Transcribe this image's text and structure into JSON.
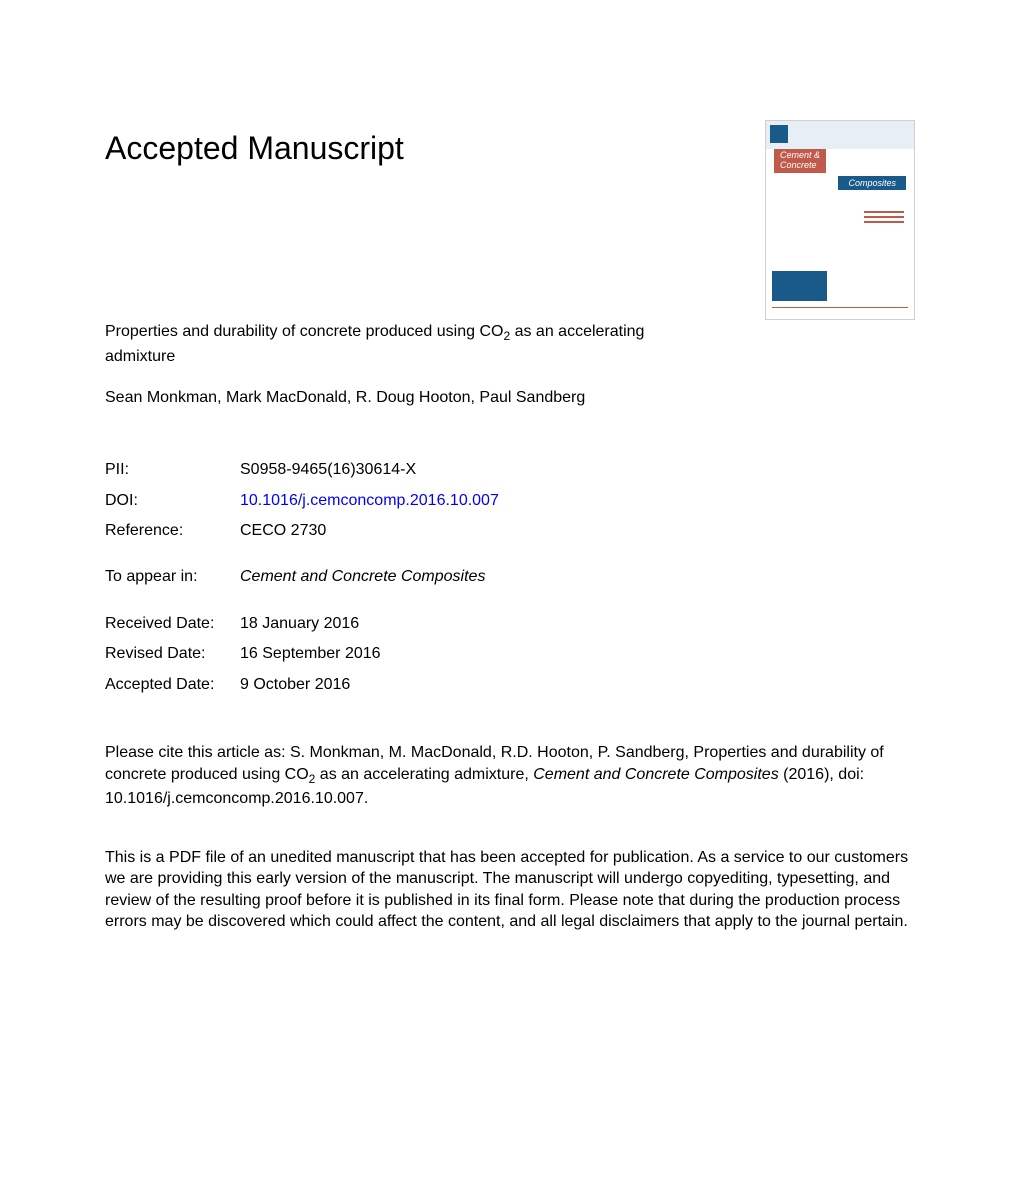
{
  "heading": "Accepted Manuscript",
  "article": {
    "title_pre": "Properties and durability of concrete produced using CO",
    "title_sub": "2",
    "title_post": " as an accelerating admixture",
    "authors": "Sean Monkman, Mark MacDonald, R. Doug Hooton, Paul Sandberg"
  },
  "cover": {
    "line1": "Cement &",
    "line2": "Concrete",
    "line3": "Composites"
  },
  "meta": {
    "pii_label": "PII:",
    "pii_value": "S0958-9465(16)30614-X",
    "doi_label": "DOI:",
    "doi_value": "10.1016/j.cemconcomp.2016.10.007",
    "ref_label": "Reference:",
    "ref_value": "CECO 2730",
    "appear_label": "To appear in:",
    "appear_value": "Cement and Concrete Composites",
    "received_label": "Received Date:",
    "received_value": "18 January 2016",
    "revised_label": "Revised Date:",
    "revised_value": "16 September 2016",
    "accepted_label": "Accepted Date:",
    "accepted_value": "9 October 2016"
  },
  "citation": {
    "pre": "Please cite this article as: S. Monkman, M. MacDonald, R.D. Hooton, P. Sandberg, Properties and durability of concrete produced using CO",
    "sub": "2",
    "mid": " as an accelerating admixture, ",
    "journal": "Cement and Concrete Composites",
    "post": " (2016), doi: 10.1016/j.cemconcomp.2016.10.007."
  },
  "disclaimer": "This is a PDF file of an unedited manuscript that has been accepted for publication. As a service to our customers we are providing this early version of the manuscript. The manuscript will undergo copyediting, typesetting, and review of the resulting proof before it is published in its final form. Please note that during the production process errors may be discovered which could affect the content, and all legal disclaimers that apply to the journal pertain.",
  "colors": {
    "text": "#000000",
    "link": "#0000ff",
    "cover_orange": "#c05a4a",
    "cover_blue": "#1a5a8a",
    "cover_border": "#d0d0d0",
    "background": "#ffffff"
  },
  "typography": {
    "heading_fontsize": 32,
    "body_fontsize": 16,
    "font_family": "Arial"
  }
}
